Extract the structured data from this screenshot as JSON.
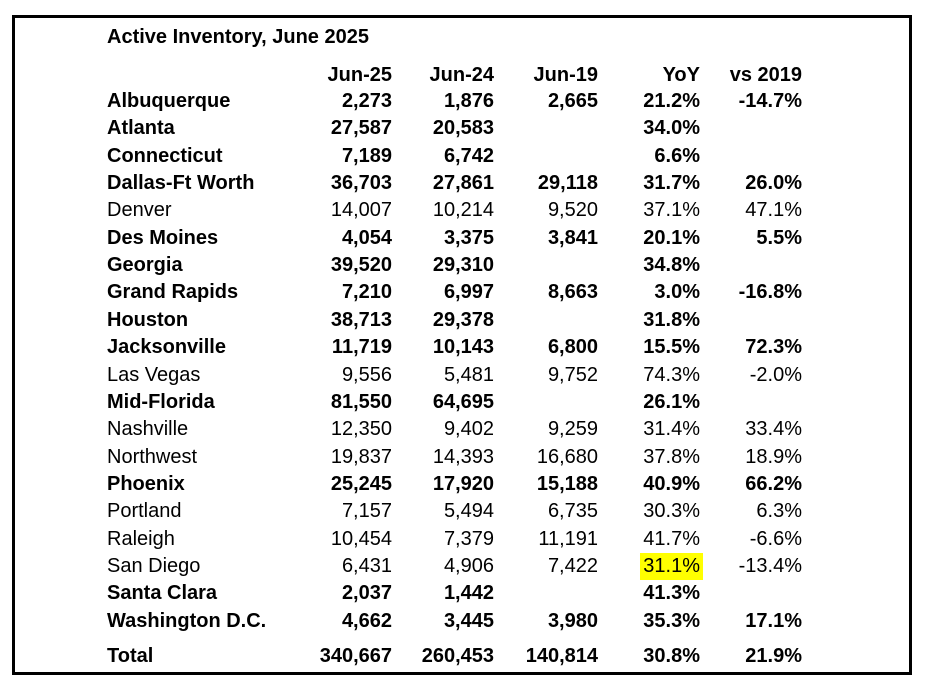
{
  "title": "Active Inventory, June 2025",
  "columns": [
    "Jun-25",
    "Jun-24",
    "Jun-19",
    "YoY",
    "vs 2019"
  ],
  "rows": [
    {
      "name": "Albuquerque",
      "bold": true,
      "jun25": "2,273",
      "jun24": "1,876",
      "jun19": "2,665",
      "yoy": "21.2%",
      "vs2019": "-14.7%"
    },
    {
      "name": "Atlanta",
      "bold": true,
      "jun25": "27,587",
      "jun24": "20,583",
      "jun19": "",
      "yoy": "34.0%",
      "vs2019": ""
    },
    {
      "name": "Connecticut",
      "bold": true,
      "jun25": "7,189",
      "jun24": "6,742",
      "jun19": "",
      "yoy": "6.6%",
      "vs2019": ""
    },
    {
      "name": "Dallas-Ft Worth",
      "bold": true,
      "jun25": "36,703",
      "jun24": "27,861",
      "jun19": "29,118",
      "yoy": "31.7%",
      "vs2019": "26.0%"
    },
    {
      "name": "Denver",
      "bold": false,
      "jun25": "14,007",
      "jun24": "10,214",
      "jun19": "9,520",
      "yoy": "37.1%",
      "vs2019": "47.1%"
    },
    {
      "name": "Des Moines",
      "bold": true,
      "jun25": "4,054",
      "jun24": "3,375",
      "jun19": "3,841",
      "yoy": "20.1%",
      "vs2019": "5.5%"
    },
    {
      "name": "Georgia",
      "bold": true,
      "jun25": "39,520",
      "jun24": "29,310",
      "jun19": "",
      "yoy": "34.8%",
      "vs2019": ""
    },
    {
      "name": "Grand Rapids",
      "bold": true,
      "jun25": "7,210",
      "jun24": "6,997",
      "jun19": "8,663",
      "yoy": "3.0%",
      "vs2019": "-16.8%"
    },
    {
      "name": "Houston",
      "bold": true,
      "jun25": "38,713",
      "jun24": "29,378",
      "jun19": "",
      "yoy": "31.8%",
      "vs2019": ""
    },
    {
      "name": "Jacksonville",
      "bold": true,
      "jun25": "11,719",
      "jun24": "10,143",
      "jun19": "6,800",
      "yoy": "15.5%",
      "vs2019": "72.3%"
    },
    {
      "name": "Las Vegas",
      "bold": false,
      "jun25": "9,556",
      "jun24": "5,481",
      "jun19": "9,752",
      "yoy": "74.3%",
      "vs2019": "-2.0%"
    },
    {
      "name": "Mid-Florida",
      "bold": true,
      "jun25": "81,550",
      "jun24": "64,695",
      "jun19": "",
      "yoy": "26.1%",
      "vs2019": ""
    },
    {
      "name": "Nashville",
      "bold": false,
      "jun25": "12,350",
      "jun24": "9,402",
      "jun19": "9,259",
      "yoy": "31.4%",
      "vs2019": "33.4%"
    },
    {
      "name": "Northwest",
      "bold": false,
      "jun25": "19,837",
      "jun24": "14,393",
      "jun19": "16,680",
      "yoy": "37.8%",
      "vs2019": "18.9%"
    },
    {
      "name": "Phoenix",
      "bold": true,
      "jun25": "25,245",
      "jun24": "17,920",
      "jun19": "15,188",
      "yoy": "40.9%",
      "vs2019": "66.2%"
    },
    {
      "name": "Portland",
      "bold": false,
      "jun25": "7,157",
      "jun24": "5,494",
      "jun19": "6,735",
      "yoy": "30.3%",
      "vs2019": "6.3%"
    },
    {
      "name": "Raleigh",
      "bold": false,
      "jun25": "10,454",
      "jun24": "7,379",
      "jun19": "11,191",
      "yoy": "41.7%",
      "vs2019": "-6.6%"
    },
    {
      "name": "San Diego",
      "bold": false,
      "jun25": "6,431",
      "jun24": "4,906",
      "jun19": "7,422",
      "yoy": "31.1%",
      "vs2019": "-13.4%",
      "highlight_yoy": true
    },
    {
      "name": "Santa Clara",
      "bold": true,
      "jun25": "2,037",
      "jun24": "1,442",
      "jun19": "",
      "yoy": "41.3%",
      "vs2019": ""
    },
    {
      "name": "Washington D.C.",
      "bold": true,
      "jun25": "4,662",
      "jun24": "3,445",
      "jun19": "3,980",
      "yoy": "35.3%",
      "vs2019": "17.1%"
    }
  ],
  "total": {
    "name": "Total",
    "jun25": "340,667",
    "jun24": "260,453",
    "jun19": "140,814",
    "yoy": "30.8%",
    "vs2019": "21.9%"
  },
  "colors": {
    "highlight": "#ffff00",
    "border": "#000000"
  }
}
